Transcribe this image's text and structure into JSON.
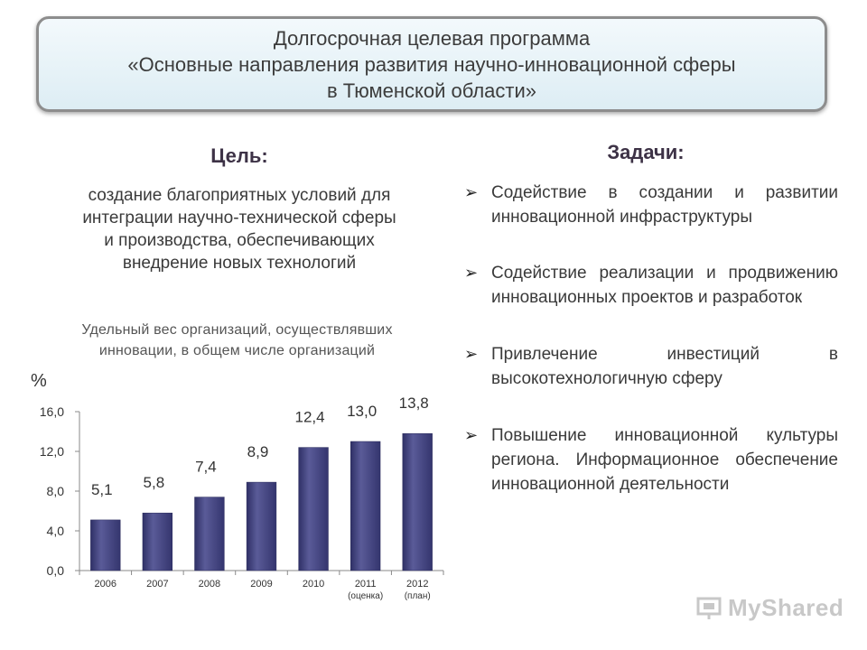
{
  "header": {
    "line1": "Долгосрочная целевая программа",
    "line2": "«Основные направления развития научно-инновационной сферы",
    "line3": "в Тюменской области»"
  },
  "goal": {
    "heading": "Цель:",
    "lines": [
      "создание благоприятных условий для",
      "интеграции научно-технической сферы",
      "и производства, обеспечивающих",
      "внедрение новых технологий"
    ]
  },
  "tasks": {
    "heading": "Задачи:",
    "items": [
      "Содействие в создании и развитии инновационной инфраструктуры",
      "Содействие реализации и продвижению инновационных проектов и разработок",
      "Привлечение инвестиций в высокотехнологичную сферу",
      "Повышение инновационной культуры региона. Информационное обеспечение инновационной деятельности"
    ]
  },
  "chart_caption": {
    "line1": "Удельный вес организаций, осуществлявших",
    "line2": "инновации, в общем числе организаций"
  },
  "chart_data": {
    "type": "bar",
    "ylabel": "%",
    "ylim": [
      0,
      16
    ],
    "yticks": [
      "0,0",
      "4,0",
      "8,0",
      "12,0",
      "16,0"
    ],
    "ytick_values": [
      0,
      4,
      8,
      12,
      16
    ],
    "categories": [
      [
        "2006"
      ],
      [
        "2007"
      ],
      [
        "2008"
      ],
      [
        "2009"
      ],
      [
        "2010"
      ],
      [
        "2011",
        "(оценка)"
      ],
      [
        "2012",
        "(план)"
      ]
    ],
    "values": [
      5.1,
      5.8,
      7.4,
      8.9,
      12.4,
      13.0,
      13.8
    ],
    "value_labels": [
      "5,1",
      "5,8",
      "7,4",
      "8,9",
      "12,4",
      "13,0",
      "13,8"
    ],
    "bar_color": "#3e3f7a",
    "grid": false
  },
  "watermark": {
    "text": "MyShared"
  }
}
